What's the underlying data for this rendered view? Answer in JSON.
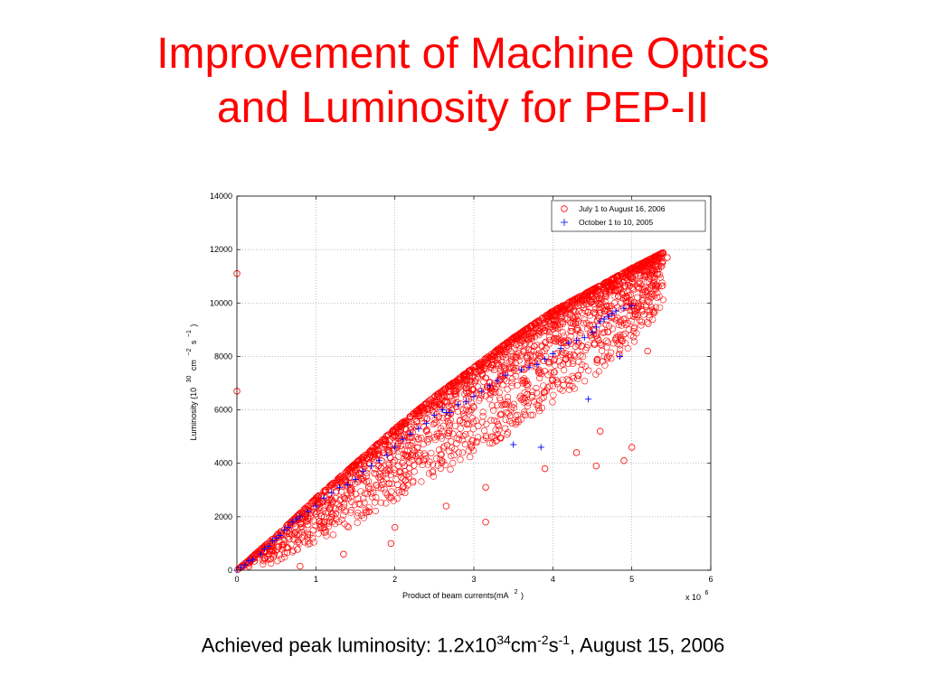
{
  "slide": {
    "title_line1": "Improvement of Machine Optics",
    "title_line2": "and Luminosity for PEP-II",
    "title_color": "#ff0000"
  },
  "caption": {
    "prefix": "Achieved peak luminosity: 1.2x10",
    "exp1": "34",
    "mid1": "cm",
    "exp2": "-2",
    "mid2": "s",
    "exp3": "-1",
    "suffix": ", August 15, 2006"
  },
  "chart_data": {
    "type": "scatter",
    "title": "",
    "xlabel": "Product of beam currents(mA",
    "xlabel_exp": "2",
    "xlabel_close": ")",
    "x_multiplier_base": "x 10",
    "x_multiplier_exp": "6",
    "ylabel_pre": "Luminosity (10",
    "ylabel_exp30": "30",
    "ylabel_cm": "cm",
    "ylabel_exp_cm": "−2",
    "ylabel_s": "s",
    "ylabel_exp_s": "−1",
    "ylabel_close": ")",
    "xlim": [
      0,
      6
    ],
    "ylim": [
      0,
      14000
    ],
    "xticks": [
      "0",
      "1",
      "2",
      "3",
      "4",
      "5",
      "6"
    ],
    "yticks": [
      "0",
      "2000",
      "4000",
      "6000",
      "8000",
      "10000",
      "12000",
      "14000"
    ],
    "grid": true,
    "legend_position": "top-right",
    "series": [
      {
        "name": "July 1 to August 16, 2006",
        "marker": "circle",
        "color": "#ff0000",
        "outliers": [
          [
            0.0,
            11100
          ],
          [
            0.0,
            6700
          ],
          [
            0.8,
            150
          ],
          [
            1.35,
            600
          ],
          [
            1.95,
            1000
          ],
          [
            2.0,
            1600
          ],
          [
            2.65,
            2400
          ],
          [
            3.15,
            1800
          ],
          [
            3.15,
            3100
          ],
          [
            3.9,
            3800
          ],
          [
            4.3,
            4400
          ],
          [
            4.55,
            3900
          ],
          [
            4.6,
            5200
          ],
          [
            4.9,
            4100
          ],
          [
            5.0,
            4600
          ],
          [
            5.2,
            8200
          ],
          [
            5.45,
            11700
          ]
        ],
        "envelope": {
          "x": [
            0.0,
            0.5,
            1.0,
            1.5,
            2.0,
            2.5,
            3.0,
            3.5,
            4.0,
            4.5,
            5.0,
            5.4
          ],
          "upper": [
            0,
            1300,
            2700,
            4000,
            5300,
            6500,
            7600,
            8700,
            9700,
            10500,
            11300,
            11900
          ],
          "lower": [
            0,
            300,
            1000,
            1700,
            2600,
            3400,
            4300,
            5200,
            6300,
            7200,
            8400,
            9800
          ]
        }
      },
      {
        "name": "October 1 to 10, 2005",
        "marker": "plus",
        "color": "#0000ff",
        "points": [
          [
            0.0,
            0
          ],
          [
            0.05,
            100
          ],
          [
            0.1,
            200
          ],
          [
            0.15,
            350
          ],
          [
            0.2,
            400
          ],
          [
            0.3,
            600
          ],
          [
            0.35,
            800
          ],
          [
            0.4,
            900
          ],
          [
            0.45,
            1100
          ],
          [
            0.5,
            1200
          ],
          [
            0.55,
            1300
          ],
          [
            0.6,
            1500
          ],
          [
            0.65,
            1600
          ],
          [
            0.7,
            1800
          ],
          [
            0.75,
            1900
          ],
          [
            0.8,
            2000
          ],
          [
            0.9,
            2200
          ],
          [
            1.0,
            2400
          ],
          [
            1.1,
            2700
          ],
          [
            1.2,
            2900
          ],
          [
            1.3,
            3100
          ],
          [
            1.4,
            3200
          ],
          [
            1.5,
            3400
          ],
          [
            1.6,
            3700
          ],
          [
            1.7,
            3900
          ],
          [
            1.8,
            4100
          ],
          [
            1.9,
            4300
          ],
          [
            2.0,
            4600
          ],
          [
            2.1,
            4900
          ],
          [
            2.2,
            5100
          ],
          [
            2.3,
            5300
          ],
          [
            2.4,
            5500
          ],
          [
            2.5,
            5800
          ],
          [
            2.6,
            6000
          ],
          [
            2.65,
            5900
          ],
          [
            2.7,
            5900
          ],
          [
            2.8,
            6200
          ],
          [
            2.9,
            6300
          ],
          [
            3.0,
            6500
          ],
          [
            3.1,
            6700
          ],
          [
            3.2,
            6900
          ],
          [
            3.3,
            7100
          ],
          [
            3.4,
            7300
          ],
          [
            3.5,
            4700
          ],
          [
            3.6,
            7500
          ],
          [
            3.7,
            7600
          ],
          [
            3.8,
            7700
          ],
          [
            3.85,
            4600
          ],
          [
            3.9,
            7900
          ],
          [
            4.0,
            8100
          ],
          [
            4.1,
            8300
          ],
          [
            4.2,
            8500
          ],
          [
            4.3,
            8600
          ],
          [
            4.4,
            8700
          ],
          [
            4.45,
            6400
          ],
          [
            4.5,
            8900
          ],
          [
            4.55,
            9100
          ],
          [
            4.6,
            9300
          ],
          [
            4.65,
            9400
          ],
          [
            4.7,
            9500
          ],
          [
            4.75,
            9600
          ],
          [
            4.8,
            9700
          ],
          [
            4.85,
            8000
          ],
          [
            4.9,
            9800
          ],
          [
            5.0,
            9900
          ]
        ]
      }
    ]
  }
}
